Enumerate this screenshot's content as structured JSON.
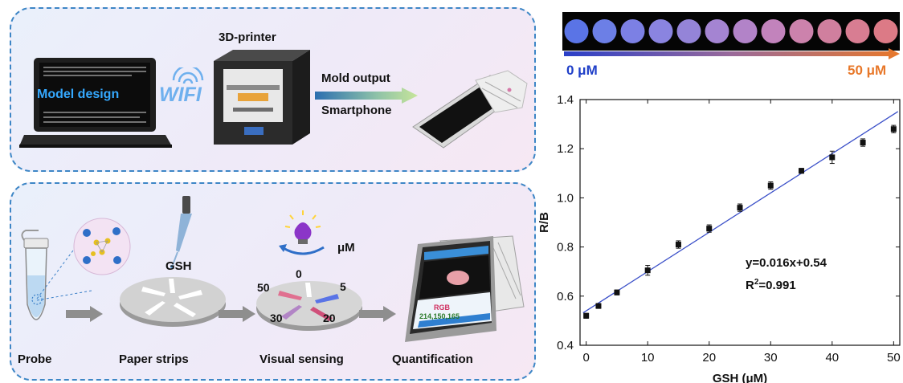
{
  "top_panel": {
    "laptop_text": "Model design",
    "wifi_text": "WIFI",
    "printer_label": "3D-printer",
    "arrow_top_label": "Mold output",
    "arrow_bottom_label": "Smartphone"
  },
  "bottom_panel": {
    "steps": [
      "Probe",
      "Paper strips",
      "Visual sensing",
      "Quantification"
    ],
    "gsh_label": "GSH",
    "unit_label": "μM",
    "disk_numbers": [
      "0",
      "5",
      "20",
      "30",
      "50"
    ],
    "phone_rgb_label": "RGB",
    "phone_rgb_values": "214,150,165"
  },
  "color_scale": {
    "left_label": "0 μM",
    "right_label": "50 μM",
    "left_color": "#1f3fc8",
    "right_color": "#e8782a",
    "spot_colors": [
      "#5a74e6",
      "#6c7fe6",
      "#7c80e4",
      "#8a84e0",
      "#9484d8",
      "#a484d2",
      "#b283c8",
      "#c283bc",
      "#cc82ac",
      "#d07f9e",
      "#d87d92",
      "#dc7a86"
    ]
  },
  "chart_data": {
    "type": "scatter",
    "xlabel": "GSH (μM)",
    "ylabel": "R/B",
    "xlim": [
      -1,
      51
    ],
    "ylim": [
      0.4,
      1.4
    ],
    "x_ticks": [
      0,
      10,
      20,
      30,
      40,
      50
    ],
    "y_ticks": [
      0.4,
      0.6,
      0.8,
      1.0,
      1.2,
      1.4
    ],
    "y_tick_labels": [
      "0.4",
      "0.6",
      "0.8",
      "1.0",
      "1.2",
      "1.4"
    ],
    "series": [
      {
        "points": [
          {
            "x": 0,
            "y": 0.52,
            "err": 0.01
          },
          {
            "x": 2,
            "y": 0.56,
            "err": 0.01
          },
          {
            "x": 5,
            "y": 0.615,
            "err": 0.01
          },
          {
            "x": 10,
            "y": 0.705,
            "err": 0.02
          },
          {
            "x": 15,
            "y": 0.81,
            "err": 0.015
          },
          {
            "x": 20,
            "y": 0.875,
            "err": 0.015
          },
          {
            "x": 25,
            "y": 0.96,
            "err": 0.015
          },
          {
            "x": 30,
            "y": 1.05,
            "err": 0.015
          },
          {
            "x": 35,
            "y": 1.11,
            "err": 0.01
          },
          {
            "x": 40,
            "y": 1.165,
            "err": 0.025
          },
          {
            "x": 45,
            "y": 1.225,
            "err": 0.015
          },
          {
            "x": 50,
            "y": 1.28,
            "err": 0.015
          }
        ]
      }
    ],
    "fit": {
      "slope": 0.016,
      "intercept": 0.54,
      "color": "#3a4fc8"
    },
    "equation": "y=0.016x+0.54",
    "r2_prefix": "R",
    "r2_sup": "2",
    "r2_value": "=0.991"
  }
}
